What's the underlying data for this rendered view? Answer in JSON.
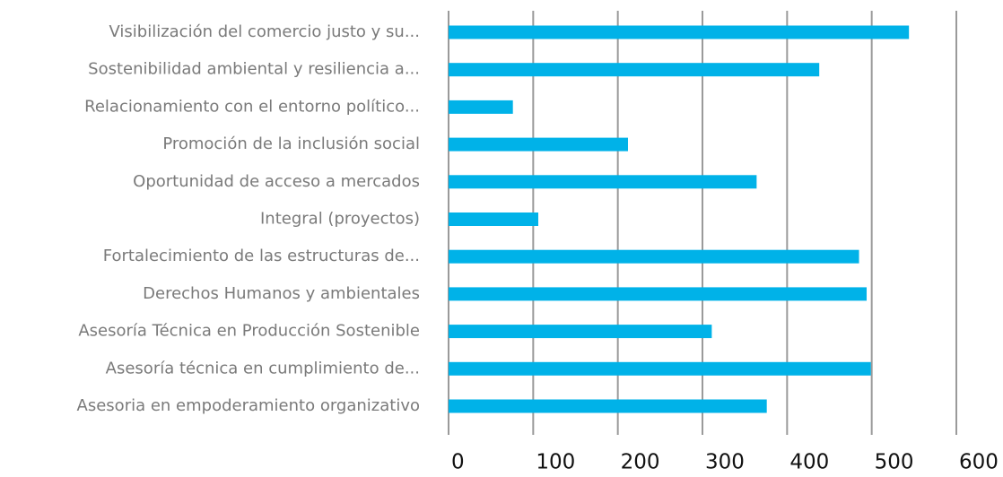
{
  "chart_data": {
    "type": "barh",
    "categories": [
      "Visibilización del comercio justo y su...",
      "Sostenibilidad ambiental y resiliencia a...",
      "Relacionamiento con el entorno político...",
      "Promoción de la inclusión social",
      "Oportunidad de acceso a mercados",
      "Integral (proyectos)",
      "Fortalecimiento de las estructuras de...",
      "Derechos Humanos y ambientales",
      "Asesoría Técnica en Producción Sostenible",
      "Asesoría técnica en cumplimiento de...",
      "Asesoria en empoderamiento organizativo"
    ],
    "values": [
      544,
      438,
      76,
      212,
      364,
      106,
      485,
      494,
      311,
      499,
      376
    ],
    "color": "#00b2e8",
    "xlim": [
      0,
      600
    ],
    "xticks": [
      0,
      100,
      200,
      300,
      400,
      500,
      600
    ],
    "grid": true
  }
}
